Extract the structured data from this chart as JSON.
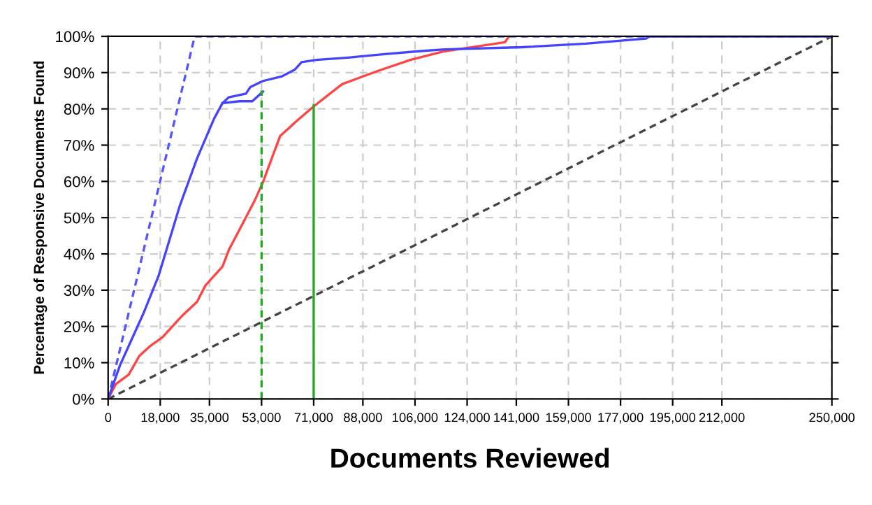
{
  "chart_data": {
    "type": "line",
    "xlabel": "Documents Reviewed",
    "ylabel": "Percentage of Responsive Documents Found",
    "xlim": [
      0,
      250000
    ],
    "ylim": [
      0,
      100
    ],
    "xticks": [
      {
        "value": 0,
        "label": "0"
      },
      {
        "value": 18000,
        "label": "18,000"
      },
      {
        "value": 35000,
        "label": "35,000"
      },
      {
        "value": 53000,
        "label": "53,000"
      },
      {
        "value": 71000,
        "label": "71,000"
      },
      {
        "value": 88000,
        "label": "88,000"
      },
      {
        "value": 106000,
        "label": "106,000"
      },
      {
        "value": 124000,
        "label": "124,000"
      },
      {
        "value": 141000,
        "label": "141,000"
      },
      {
        "value": 159000,
        "label": "159,000"
      },
      {
        "value": 177000,
        "label": "177,000"
      },
      {
        "value": 195000,
        "label": "195,000"
      },
      {
        "value": 212000,
        "label": "212,000"
      },
      {
        "value": 250000,
        "label": "250,000"
      }
    ],
    "yticks": [
      {
        "value": 0,
        "label": "0%"
      },
      {
        "value": 10,
        "label": "10%"
      },
      {
        "value": 20,
        "label": "20%"
      },
      {
        "value": 30,
        "label": "30%"
      },
      {
        "value": 40,
        "label": "40%"
      },
      {
        "value": 50,
        "label": "50%"
      },
      {
        "value": 60,
        "label": "60%"
      },
      {
        "value": 70,
        "label": "70%"
      },
      {
        "value": 80,
        "label": "80%"
      },
      {
        "value": 90,
        "label": "90%"
      },
      {
        "value": 100,
        "label": "100%"
      }
    ],
    "grid": true,
    "marker": "none",
    "series": [
      {
        "color": "#444444",
        "line_style": "dashed",
        "x": [
          0,
          250000
        ],
        "values": [
          0,
          100
        ]
      },
      {
        "color": "#5555ff",
        "line_style": "dashed",
        "x": [
          0,
          29900,
          250000
        ],
        "values": [
          0,
          100,
          100
        ]
      },
      {
        "color": "#ff4444",
        "line_style": "solid",
        "x": [
          0,
          2650,
          7100,
          10800,
          14400,
          18900,
          25500,
          30700,
          33600,
          39500,
          41700,
          47600,
          50600,
          53500,
          56500,
          59400,
          66000,
          71200,
          80800,
          92600,
          104400,
          116200,
          123800,
          137100,
          138400
        ],
        "values": [
          0,
          4.1,
          6.7,
          11.9,
          14.5,
          17.1,
          22.9,
          26.8,
          31.3,
          36.5,
          41.1,
          50.1,
          54.7,
          59.8,
          66.3,
          72.5,
          77.3,
          80.8,
          86.8,
          90.3,
          93.5,
          95.9,
          96.8,
          98.4,
          100
        ]
      },
      {
        "color": "#4444ff",
        "line_style": "solid",
        "x": [
          0,
          4100,
          12200,
          17400,
          24800,
          30700,
          36600,
          39500,
          41700,
          47600,
          49100,
          53500,
          60100,
          64600,
          66800,
          71900,
          83700,
          95500,
          107300,
          116200,
          142900,
          165000,
          185800,
          187000,
          250000
        ],
        "values": [
          0,
          9.3,
          23.6,
          33.9,
          53.4,
          66.3,
          77.3,
          81.6,
          83.2,
          84.2,
          86,
          87.7,
          89,
          90.9,
          92.9,
          93.5,
          94.2,
          95.1,
          95.9,
          96.4,
          97,
          98,
          99.4,
          100,
          100
        ]
      },
      {
        "color": "#4444ff",
        "line_style": "solid",
        "x": [
          39500,
          45400,
          49800,
          53500
        ],
        "values": [
          81.6,
          82.1,
          82.1,
          84.8
        ]
      },
      {
        "color": "#22aa22",
        "line_style": "dashed",
        "x": [
          53000,
          53000
        ],
        "values": [
          0,
          85
        ]
      },
      {
        "color": "#22aa22",
        "line_style": "solid",
        "x": [
          71000,
          71000
        ],
        "values": [
          0,
          81
        ]
      }
    ]
  }
}
